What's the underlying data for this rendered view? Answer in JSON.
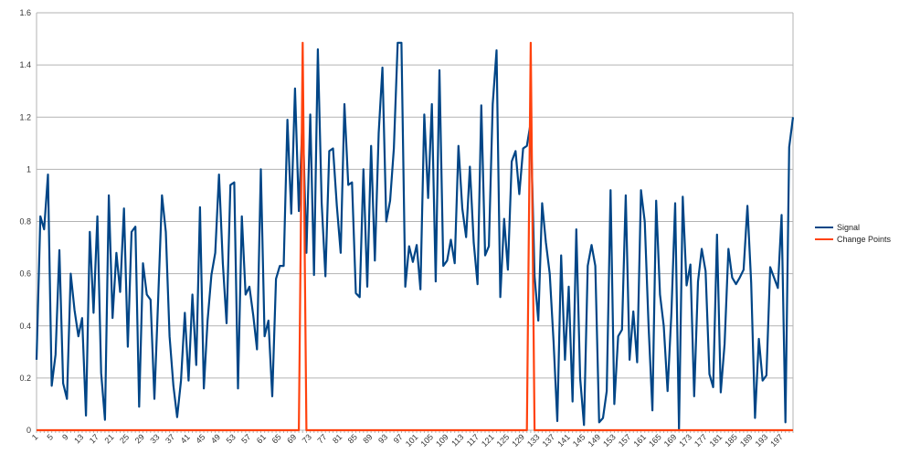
{
  "chart_data": {
    "type": "line",
    "title": "",
    "xlabel": "",
    "ylabel": "",
    "ylim": [
      0,
      1.6
    ],
    "yticks": [
      "0",
      "0.2",
      "0.4",
      "0.6",
      "0.8",
      "1",
      "1.2",
      "1.4",
      "1.6"
    ],
    "x_tick_labels": [
      "1",
      "5",
      "9",
      "13",
      "17",
      "21",
      "25",
      "29",
      "33",
      "37",
      "41",
      "45",
      "49",
      "53",
      "57",
      "61",
      "65",
      "69",
      "73",
      "77",
      "81",
      "85",
      "89",
      "93",
      "97",
      "101",
      "105",
      "109",
      "113",
      "117",
      "121",
      "125",
      "129",
      "133",
      "137",
      "141",
      "145",
      "149",
      "153",
      "157",
      "161",
      "165",
      "169",
      "173",
      "177",
      "181",
      "185",
      "189",
      "193",
      "197"
    ],
    "x_range": [
      1,
      200
    ],
    "grid": "horizontal",
    "legend_position": "right",
    "series": [
      {
        "name": "Signal",
        "color": "#004586",
        "values": [
          0.27,
          0.82,
          0.77,
          0.98,
          0.17,
          0.29,
          0.69,
          0.18,
          0.12,
          0.6,
          0.46,
          0.36,
          0.43,
          0.056,
          0.76,
          0.45,
          0.82,
          0.22,
          0.04,
          0.9,
          0.43,
          0.68,
          0.53,
          0.85,
          0.32,
          0.76,
          0.78,
          0.09,
          0.64,
          0.52,
          0.5,
          0.12,
          0.5,
          0.9,
          0.76,
          0.36,
          0.17,
          0.05,
          0.19,
          0.45,
          0.19,
          0.52,
          0.25,
          0.855,
          0.16,
          0.42,
          0.595,
          0.68,
          0.98,
          0.64,
          0.41,
          0.94,
          0.95,
          0.16,
          0.82,
          0.52,
          0.55,
          0.44,
          0.31,
          1.0,
          0.36,
          0.42,
          0.13,
          0.58,
          0.63,
          0.63,
          1.19,
          0.83,
          1.31,
          0.84,
          1.2,
          0.68,
          1.21,
          0.595,
          1.46,
          0.87,
          0.59,
          1.07,
          1.08,
          0.86,
          0.68,
          1.25,
          0.94,
          0.95,
          0.525,
          0.51,
          1.0,
          0.55,
          1.09,
          0.65,
          1.14,
          1.39,
          0.8,
          0.88,
          1.08,
          1.485,
          1.485,
          0.55,
          0.705,
          0.645,
          0.71,
          0.54,
          1.21,
          0.89,
          1.25,
          0.57,
          1.38,
          0.63,
          0.65,
          0.73,
          0.64,
          1.09,
          0.85,
          0.74,
          1.01,
          0.72,
          0.56,
          1.245,
          0.67,
          0.705,
          1.25,
          1.456,
          0.51,
          0.81,
          0.615,
          1.03,
          1.07,
          0.905,
          1.08,
          1.09,
          1.18,
          0.59,
          0.42,
          0.87,
          0.72,
          0.6,
          0.34,
          0.035,
          0.67,
          0.27,
          0.55,
          0.11,
          0.77,
          0.2,
          0.02,
          0.63,
          0.71,
          0.63,
          0.03,
          0.047,
          0.15,
          0.92,
          0.1,
          0.36,
          0.385,
          0.9,
          0.27,
          0.455,
          0.26,
          0.92,
          0.8,
          0.4,
          0.076,
          0.88,
          0.52,
          0.4,
          0.15,
          0.45,
          0.87,
          0.005,
          0.895,
          0.555,
          0.635,
          0.13,
          0.57,
          0.695,
          0.61,
          0.215,
          0.165,
          0.75,
          0.145,
          0.33,
          0.695,
          0.585,
          0.56,
          0.585,
          0.615,
          0.86,
          0.565,
          0.047,
          0.35,
          0.19,
          0.21,
          0.625,
          0.585,
          0.545,
          0.825,
          0.03,
          1.085,
          1.2
        ]
      },
      {
        "name": "Change Points",
        "color": "#ff420e",
        "nonzero": {
          "71": 1.485,
          "131": 1.485
        }
      }
    ]
  },
  "legend": {
    "items": [
      "Signal",
      "Change Points"
    ]
  }
}
